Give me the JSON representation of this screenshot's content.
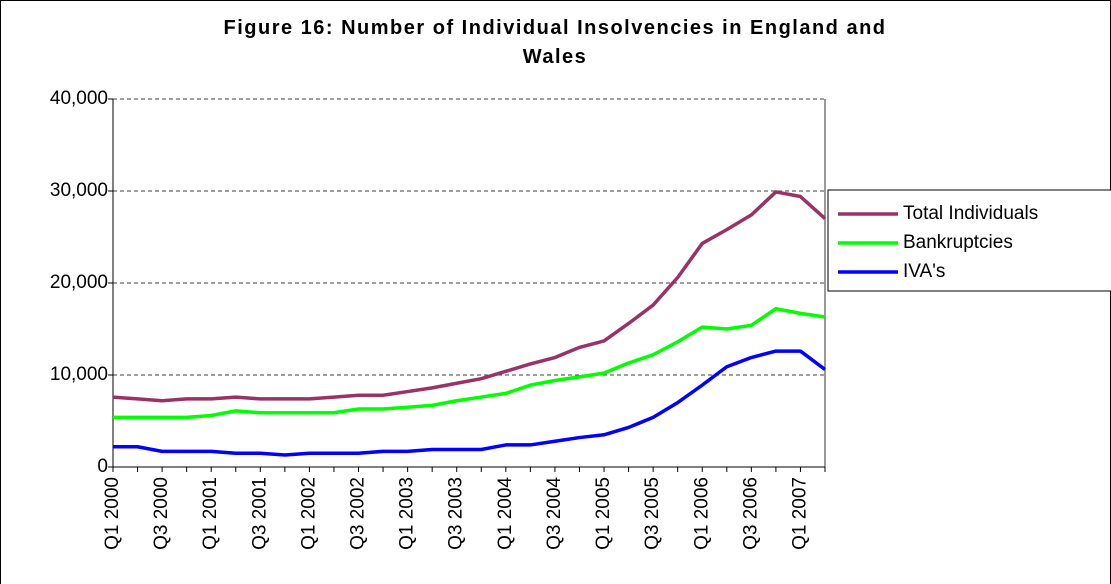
{
  "chart_data": {
    "type": "line",
    "title": "Figure 16: Number of Individual Insolvencies in England and Wales",
    "categories": [
      "Q1 2000",
      null,
      "Q3 2000",
      null,
      "Q1 2001",
      null,
      "Q3 2001",
      null,
      "Q1 2002",
      null,
      "Q3 2002",
      null,
      "Q1 2003",
      null,
      "Q3 2003",
      null,
      "Q1 2004",
      null,
      "Q3 2004",
      null,
      "Q1 2005",
      null,
      "Q3 2005",
      null,
      "Q1 2006",
      null,
      "Q3 2006",
      null,
      "Q1 2007",
      null
    ],
    "series": [
      {
        "name": "Total Individuals",
        "color": "#993366",
        "values": [
          7600,
          7400,
          7200,
          7400,
          7400,
          7600,
          7400,
          7400,
          7400,
          7600,
          7800,
          7800,
          8200,
          8600,
          9100,
          9600,
          10400,
          11200,
          11900,
          13000,
          13700,
          15600,
          17600,
          20600,
          24300,
          25800,
          27400,
          29900,
          29400,
          27000
        ]
      },
      {
        "name": "Bankruptcies",
        "color": "#00ff00",
        "values": [
          5400,
          5400,
          5400,
          5400,
          5600,
          6100,
          5900,
          5900,
          5900,
          5900,
          6300,
          6300,
          6500,
          6700,
          7200,
          7600,
          8000,
          8900,
          9400,
          9800,
          10200,
          11300,
          12200,
          13600,
          15200,
          15000,
          15400,
          17200,
          16700,
          16300
        ]
      },
      {
        "name": "IVA's",
        "color": "#0000ff",
        "values": [
          2200,
          2200,
          1700,
          1700,
          1700,
          1500,
          1500,
          1300,
          1500,
          1500,
          1500,
          1700,
          1700,
          1900,
          1900,
          1900,
          2400,
          2400,
          2800,
          3200,
          3500,
          4300,
          5400,
          7000,
          8900,
          10900,
          11900,
          12600,
          12600,
          10600
        ]
      }
    ],
    "ylim": [
      0,
      40000
    ],
    "yticks": [
      0,
      {
        "value": 10000,
        "label": "10,000"
      },
      {
        "value": 20000,
        "label": "20,000"
      },
      {
        "value": 30000,
        "label": "30,000"
      },
      {
        "value": 40000,
        "label": "40,000"
      }
    ],
    "grid": true,
    "legend": "right"
  }
}
